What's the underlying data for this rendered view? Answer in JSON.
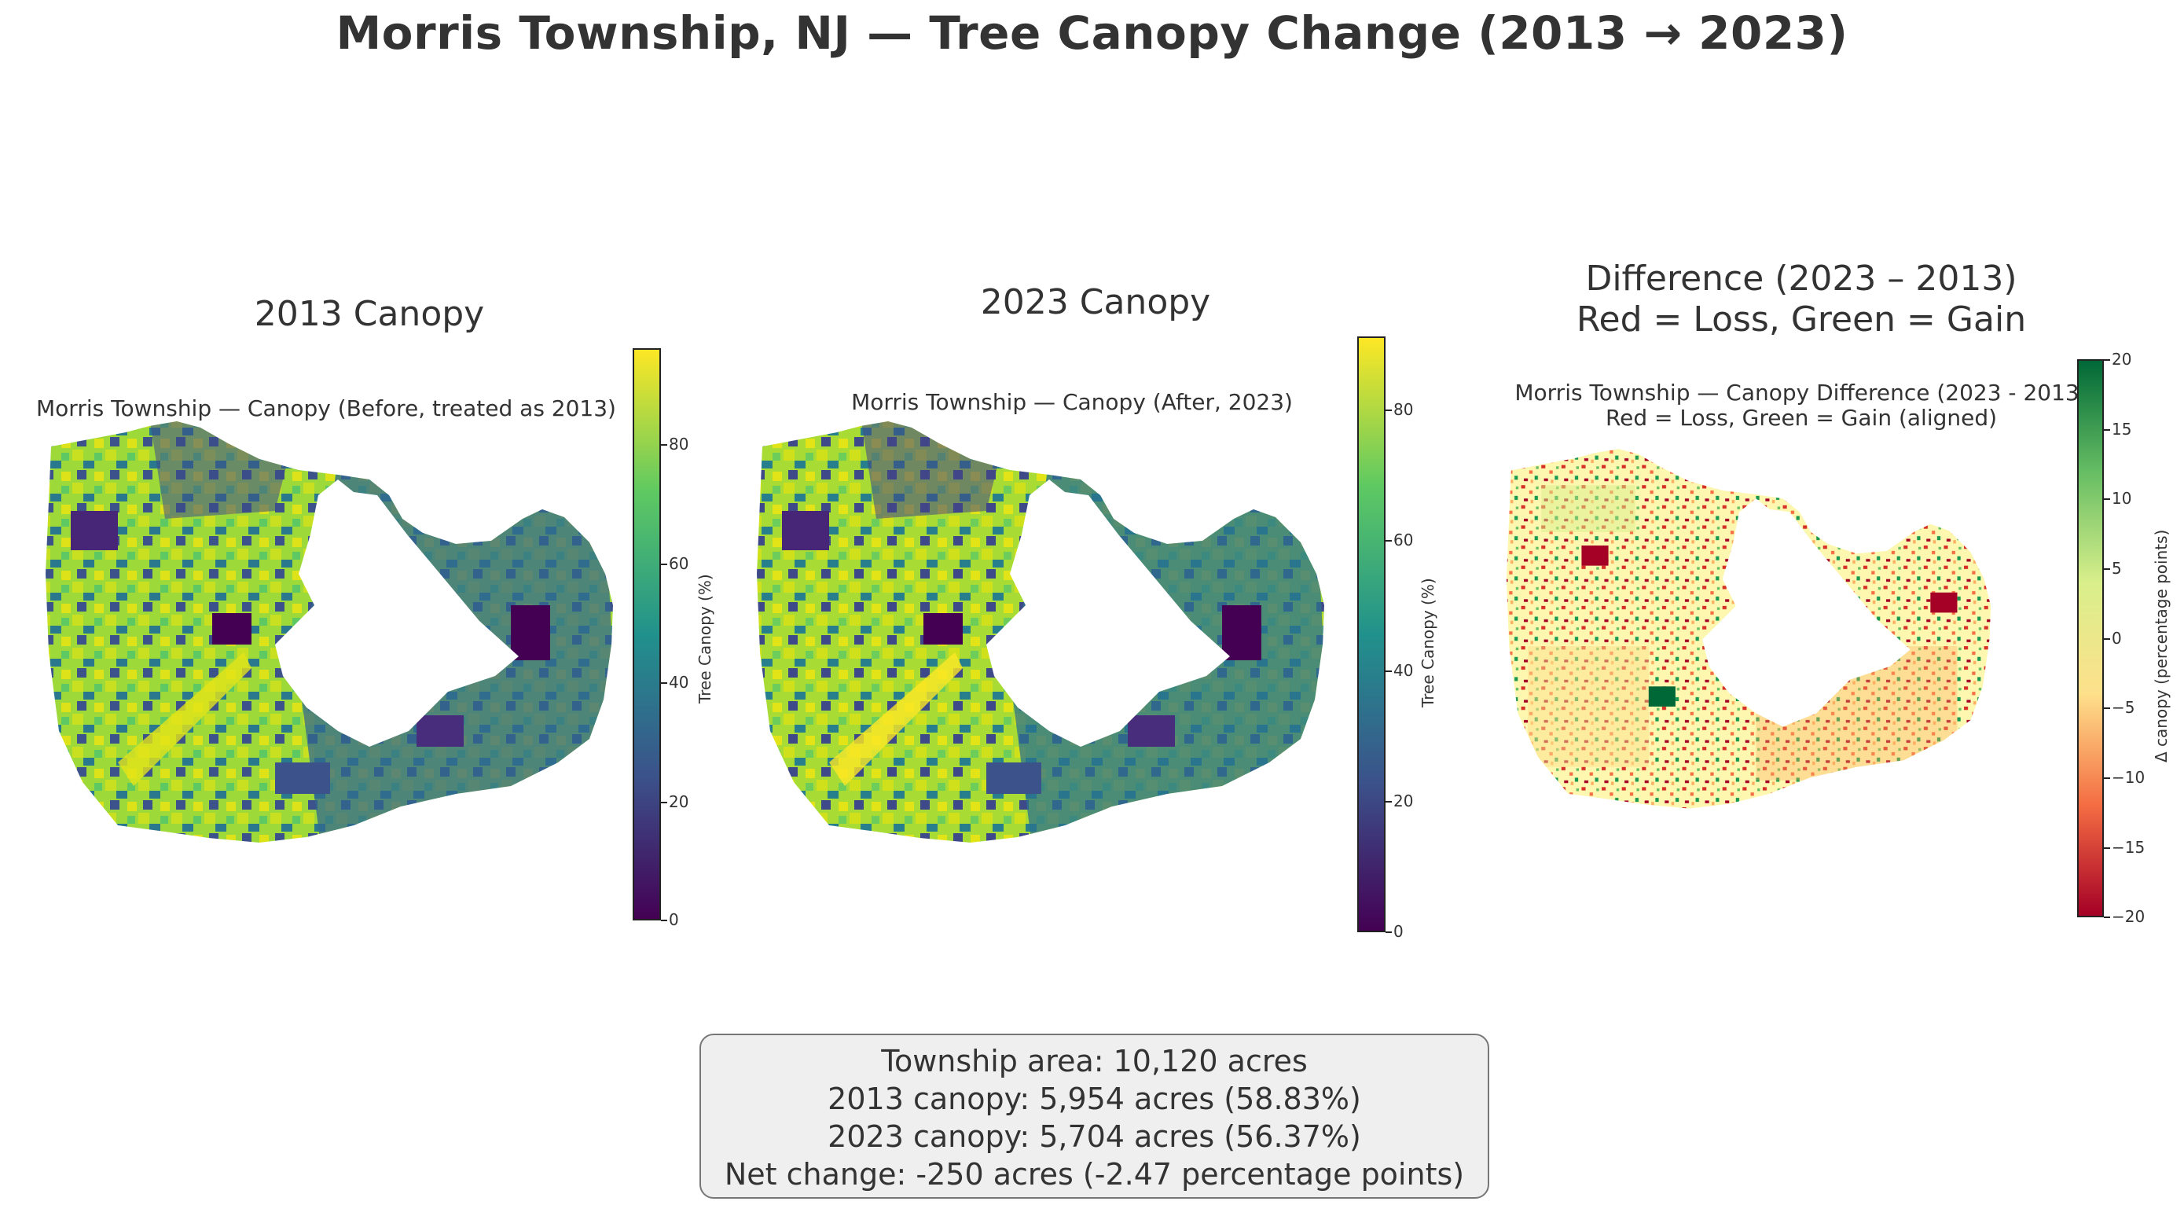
{
  "title": "Morris Township, NJ — Tree Canopy Change (2013 → 2023)",
  "panels": [
    {
      "title": "2013 Canopy",
      "subtitle": "Morris Township — Canopy (Before, treated as 2013)",
      "colormap": "viridis",
      "colorbar": {
        "label": "Tree Canopy (%)",
        "ticks": [
          "0",
          "20",
          "40",
          "60",
          "80"
        ],
        "min": 0,
        "max": 97
      }
    },
    {
      "title": "2023 Canopy",
      "subtitle": "Morris Township — Canopy (After, 2023)",
      "colormap": "viridis",
      "colorbar": {
        "label": "Tree Canopy (%)",
        "ticks": [
          "0",
          "20",
          "40",
          "60",
          "80"
        ],
        "min": 0,
        "max": 91
      }
    },
    {
      "title_line1": "Difference (2023 – 2013)",
      "title_line2": "Red = Loss, Green = Gain",
      "subtitle_line1": "Morris Township — Canopy Difference (2023 - 2013)",
      "subtitle_line2": "Red = Loss, Green = Gain (aligned)",
      "colormap": "RdYlGn",
      "colorbar": {
        "label": "Δ canopy (percentage points)",
        "ticks": [
          "−20",
          "−15",
          "−10",
          "−5",
          "0",
          "5",
          "10",
          "15",
          "20"
        ],
        "min": -20,
        "max": 20
      }
    }
  ],
  "stats": {
    "line1": "Township area: 10,120 acres",
    "line2": "2013 canopy: 5,954 acres (58.83%)",
    "line3": "2023 canopy: 5,704 acres (56.37%)",
    "line4": "Net change: -250 acres (-2.47 percentage points)"
  },
  "colors": {
    "viridis": [
      "#440154",
      "#3b528b",
      "#21918c",
      "#5ec962",
      "#fde725"
    ],
    "rdylgn": [
      "#a50026",
      "#f46d43",
      "#fee08b",
      "#d9ef8b",
      "#66bd63",
      "#006837"
    ]
  }
}
